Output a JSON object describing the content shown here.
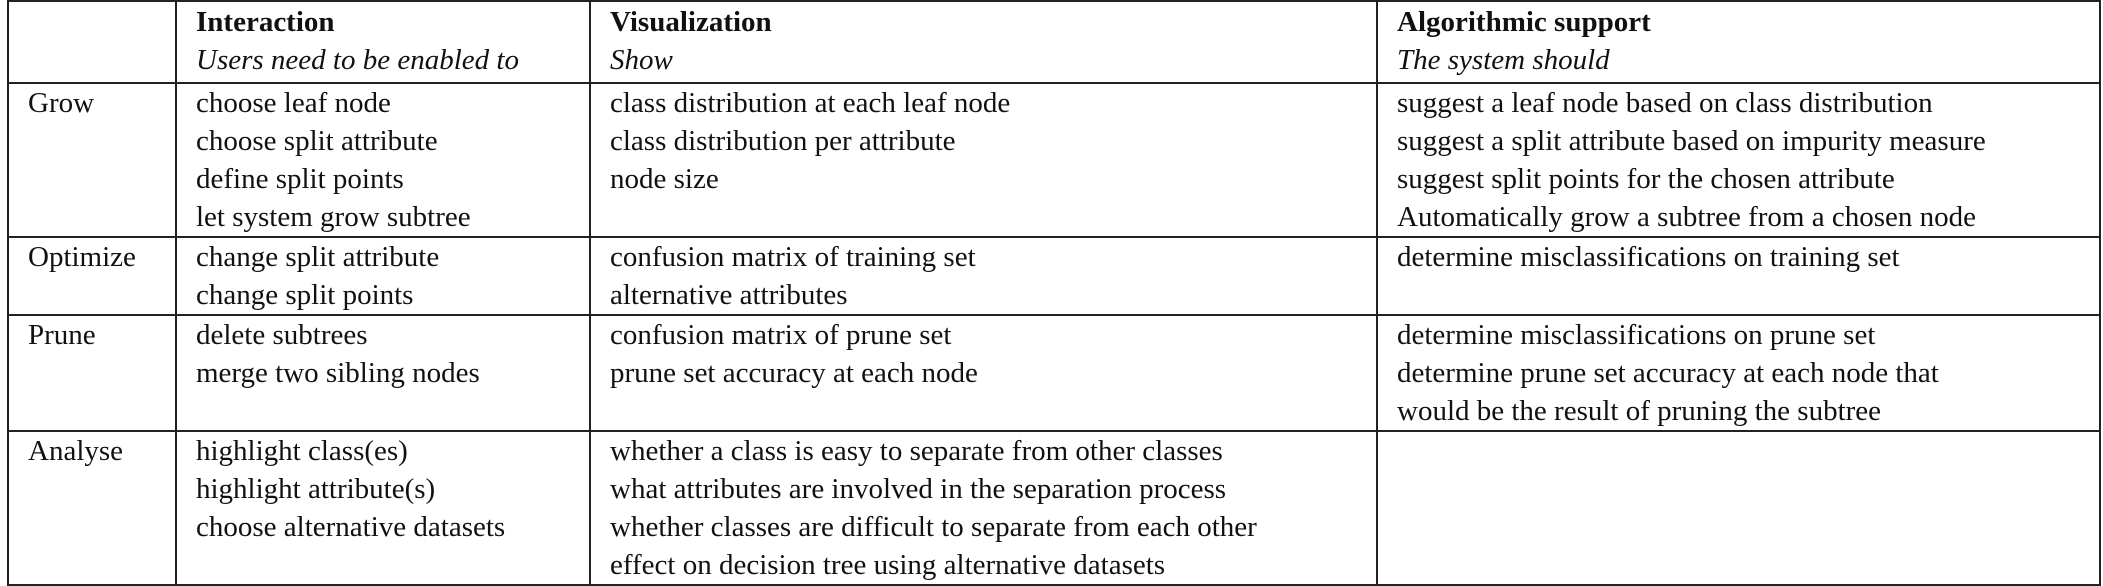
{
  "header": {
    "stage_label": "",
    "interaction": {
      "title": "Interaction",
      "subtitle": "Users need to be enabled to"
    },
    "visualization": {
      "title": "Visualization",
      "subtitle": "Show"
    },
    "algorithmic": {
      "title": "Algorithmic support",
      "subtitle": "The system should"
    }
  },
  "rows": [
    {
      "stage": "Grow",
      "interaction": [
        "choose leaf node",
        "choose split attribute",
        "define split points",
        "let system grow subtree"
      ],
      "visualization": [
        "class distribution at each leaf node",
        "class distribution per attribute",
        "node size"
      ],
      "algorithmic": [
        "suggest a leaf node based on class distribution",
        "suggest a split attribute based on impurity measure",
        "suggest split points for the chosen attribute",
        "Automatically grow a subtree from a chosen node"
      ]
    },
    {
      "stage": "Optimize",
      "interaction": [
        "change split attribute",
        "change split points"
      ],
      "visualization": [
        "confusion matrix of training set",
        "alternative attributes"
      ],
      "algorithmic": [
        "determine misclassifications on training set"
      ]
    },
    {
      "stage": "Prune",
      "interaction": [
        "delete subtrees",
        "merge two sibling nodes"
      ],
      "visualization": [
        "confusion matrix of prune set",
        "prune set accuracy at each node"
      ],
      "algorithmic": [
        "determine misclassifications on prune set",
        "determine prune set accuracy at each node that",
        "would be the result of pruning the subtree"
      ]
    },
    {
      "stage": "Analyse",
      "interaction": [
        "highlight class(es)",
        "highlight attribute(s)",
        "choose alternative datasets"
      ],
      "visualization": [
        "whether a class is easy to separate from other classes",
        "what attributes are involved in the separation process",
        "whether classes are difficult to separate from each other",
        "effect on decision tree using alternative datasets"
      ],
      "algorithmic": []
    }
  ]
}
